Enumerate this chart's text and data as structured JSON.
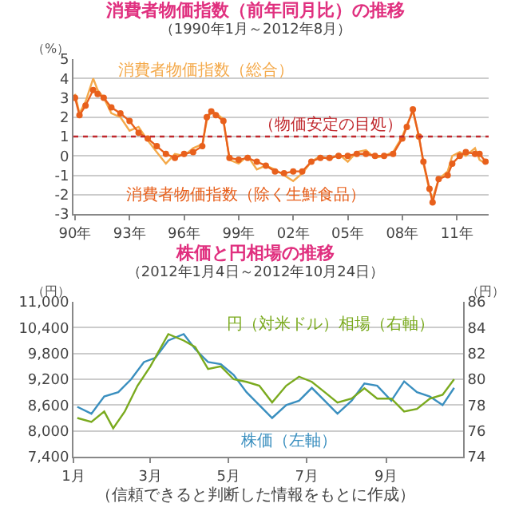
{
  "chart_data": [
    {
      "type": "line",
      "title": "消費者物価指数（前年同月比）の推移",
      "subtitle": "（1990年1月～2012年8月）",
      "ylabel": "（%）",
      "xlim": [
        "1989-12",
        "2012-10"
      ],
      "xticks": [
        {
          "value": "1990-01",
          "label": "90年"
        },
        {
          "value": "1993-01",
          "label": "93年"
        },
        {
          "value": "1996-01",
          "label": "96年"
        },
        {
          "value": "1999-01",
          "label": "99年"
        },
        {
          "value": "2002-01",
          "label": "02年"
        },
        {
          "value": "2005-01",
          "label": "05年"
        },
        {
          "value": "2008-01",
          "label": "08年"
        },
        {
          "value": "2011-01",
          "label": "11年"
        }
      ],
      "x": [
        "1990-01",
        "1990-04",
        "1990-08",
        "1991-01",
        "1991-04",
        "1991-08",
        "1992-01",
        "1992-07",
        "1993-01",
        "1993-07",
        "1994-01",
        "1994-07",
        "1995-01",
        "1995-07",
        "1996-01",
        "1996-07",
        "1997-01",
        "1997-04",
        "1997-07",
        "1997-10",
        "1998-03",
        "1998-07",
        "1999-01",
        "1999-07",
        "2000-01",
        "2000-07",
        "2001-01",
        "2001-07",
        "2002-01",
        "2002-07",
        "2003-01",
        "2003-07",
        "2004-01",
        "2004-07",
        "2005-01",
        "2005-07",
        "2006-01",
        "2006-07",
        "2007-01",
        "2007-07",
        "2008-01",
        "2008-04",
        "2008-08",
        "2008-12",
        "2009-03",
        "2009-07",
        "2009-09",
        "2010-01",
        "2010-07",
        "2010-10",
        "2011-03",
        "2011-07",
        "2012-01",
        "2012-04",
        "2012-08"
      ],
      "ylim": [
        -3,
        5
      ],
      "yticks": [
        -3,
        -2,
        -1,
        0,
        1,
        2,
        3,
        4,
        5
      ],
      "grid": "y",
      "legend": false,
      "ref_lines": [
        {
          "axis": "y",
          "value": 1,
          "label": "（物価安定の目処）",
          "color": "#c0282d",
          "line_style": "dotted"
        }
      ],
      "series": [
        {
          "name": "消費者物価指数（総合）",
          "color": "#f4a94a",
          "marker": "none",
          "values": [
            3.2,
            2.2,
            2.8,
            4.0,
            3.4,
            3.0,
            2.2,
            2.0,
            1.3,
            1.5,
            0.8,
            0.2,
            -0.4,
            0.1,
            0.0,
            0.4,
            0.6,
            1.8,
            2.3,
            2.2,
            1.9,
            -0.2,
            -0.4,
            0.0,
            -0.7,
            -0.5,
            -0.7,
            -1.0,
            -1.3,
            -0.9,
            -0.3,
            0.0,
            -0.2,
            0.1,
            -0.3,
            0.2,
            0.3,
            -0.1,
            0.0,
            0.2,
            1.0,
            1.6,
            2.3,
            1.0,
            -0.4,
            -1.8,
            -2.2,
            -1.2,
            -0.8,
            0.0,
            0.2,
            0.0,
            0.4,
            -0.2,
            -0.4
          ]
        },
        {
          "name": "消費者物価指数（除く生鮮食品）",
          "color": "#e8601c",
          "marker": "circle",
          "values": [
            3.0,
            2.1,
            2.6,
            3.4,
            3.2,
            3.0,
            2.5,
            2.2,
            1.8,
            1.2,
            0.9,
            0.5,
            0.1,
            -0.1,
            0.1,
            0.2,
            0.5,
            2.0,
            2.3,
            2.1,
            1.8,
            -0.1,
            -0.2,
            -0.1,
            -0.3,
            -0.5,
            -0.8,
            -0.9,
            -0.8,
            -0.8,
            -0.3,
            -0.1,
            -0.1,
            0.0,
            0.0,
            0.1,
            0.1,
            0.0,
            0.0,
            0.1,
            0.9,
            1.5,
            2.4,
            1.0,
            -0.3,
            -1.7,
            -2.4,
            -1.2,
            -1.0,
            -0.4,
            0.0,
            0.2,
            0.1,
            0.1,
            -0.3
          ]
        }
      ]
    },
    {
      "type": "line",
      "title": "株価と円相場の推移",
      "subtitle": "（2012年1月4日～2012年10月24日）",
      "ylabel": "（円）",
      "y2label": "（円）",
      "xlim": [
        "2012-01-01",
        "2012-10-31"
      ],
      "xticks": [
        {
          "value": "2012-01-01",
          "label": "1月"
        },
        {
          "value": "2012-03-01",
          "label": "3月"
        },
        {
          "value": "2012-05-01",
          "label": "5月"
        },
        {
          "value": "2012-07-01",
          "label": "7月"
        },
        {
          "value": "2012-09-01",
          "label": "9月"
        }
      ],
      "ylim": [
        7400,
        11000
      ],
      "yticks": [
        {
          "value": 7400,
          "label": "7,400"
        },
        {
          "value": 8000,
          "label": "8,000"
        },
        {
          "value": 8600,
          "label": "8,600"
        },
        {
          "value": 9200,
          "label": "9,200"
        },
        {
          "value": 9800,
          "label": "9,800"
        },
        {
          "value": 10400,
          "label": "10,400"
        },
        {
          "value": 11000,
          "label": "11,000"
        }
      ],
      "y2lim": [
        74,
        86
      ],
      "y2ticks": [
        74,
        76,
        78,
        80,
        82,
        84,
        86
      ],
      "grid": "y",
      "legend": false,
      "marker": "none",
      "annotations": [
        "（信頼できると判断した情報をもとに作成）"
      ],
      "series": [
        {
          "name": "株価（左軸）",
          "color": "#3a8fbf",
          "x": [
            "2012-01-04",
            "2012-01-15",
            "2012-01-25",
            "2012-02-05",
            "2012-02-15",
            "2012-02-25",
            "2012-03-05",
            "2012-03-15",
            "2012-03-27",
            "2012-04-05",
            "2012-04-15",
            "2012-04-25",
            "2012-05-05",
            "2012-05-15",
            "2012-05-25",
            "2012-06-04",
            "2012-06-15",
            "2012-06-25",
            "2012-07-05",
            "2012-07-15",
            "2012-07-25",
            "2012-08-05",
            "2012-08-15",
            "2012-08-25",
            "2012-09-05",
            "2012-09-15",
            "2012-09-25",
            "2012-10-05",
            "2012-10-15",
            "2012-10-24"
          ],
          "values": [
            8560,
            8400,
            8800,
            8900,
            9200,
            9600,
            9700,
            10100,
            10250,
            9900,
            9600,
            9550,
            9300,
            8900,
            8600,
            8300,
            8600,
            8700,
            9000,
            8700,
            8400,
            8700,
            9100,
            9050,
            8700,
            9150,
            8900,
            8800,
            8600,
            9000
          ]
        },
        {
          "name": "円（対米ドル）相場（右軸）",
          "color": "#7aaa1e",
          "axis": "y2",
          "x": [
            "2012-01-04",
            "2012-01-15",
            "2012-01-25",
            "2012-02-01",
            "2012-02-10",
            "2012-02-20",
            "2012-03-01",
            "2012-03-15",
            "2012-03-27",
            "2012-04-05",
            "2012-04-15",
            "2012-04-25",
            "2012-05-05",
            "2012-05-15",
            "2012-05-25",
            "2012-06-04",
            "2012-06-15",
            "2012-06-25",
            "2012-07-05",
            "2012-07-15",
            "2012-07-25",
            "2012-08-05",
            "2012-08-15",
            "2012-08-25",
            "2012-09-05",
            "2012-09-15",
            "2012-09-25",
            "2012-10-05",
            "2012-10-15",
            "2012-10-24"
          ],
          "values": [
            77.0,
            76.7,
            77.5,
            76.2,
            77.5,
            79.5,
            81.0,
            83.5,
            83.0,
            82.5,
            80.8,
            81.0,
            80.0,
            79.8,
            79.5,
            78.2,
            79.5,
            80.2,
            79.8,
            79.0,
            78.2,
            78.5,
            79.3,
            78.5,
            78.5,
            77.5,
            77.7,
            78.5,
            78.8,
            80.0
          ]
        }
      ]
    }
  ]
}
